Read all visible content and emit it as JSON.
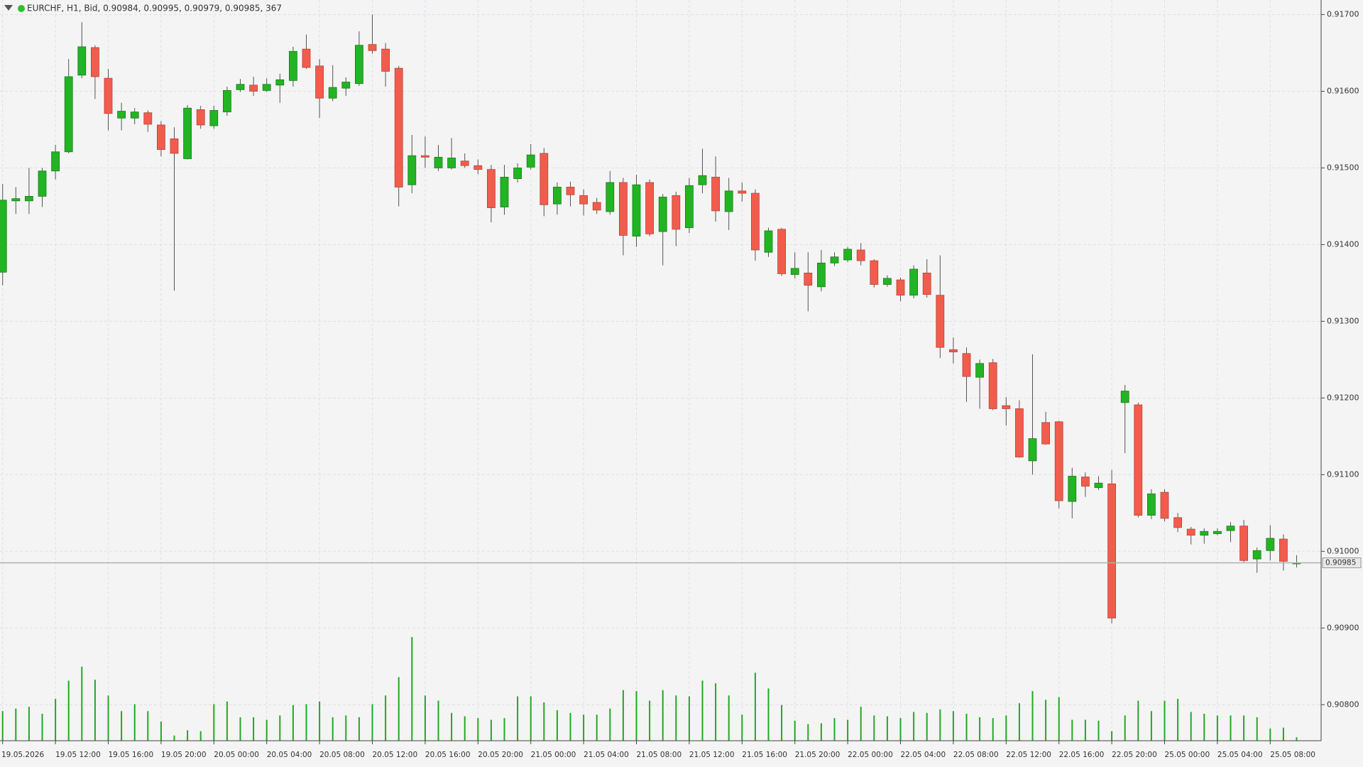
{
  "chart_data": {
    "type": "candlestick",
    "title": "EURCHF, H1, Bid, 0.90984, 0.90995, 0.90979, 0.90985, 367",
    "categories": [
      "19.05.2026",
      null,
      null,
      null,
      "19.05 12:00",
      null,
      null,
      null,
      "19.05 16:00",
      null,
      null,
      null,
      "19.05 20:00",
      null,
      null,
      null,
      "20.05 00:00",
      null,
      null,
      null,
      "20.05 04:00",
      null,
      null,
      null,
      "20.05 08:00",
      null,
      null,
      null,
      "20.05 12:00",
      null,
      null,
      null,
      "20.05 16:00",
      null,
      null,
      null,
      "20.05 20:00",
      null,
      null,
      null,
      "21.05 00:00",
      null,
      null,
      null,
      "21.05 04:00",
      null,
      null,
      null,
      "21.05 08:00",
      null,
      null,
      null,
      "21.05 12:00",
      null,
      null,
      null,
      "21.05 16:00",
      null,
      null,
      null,
      "21.05 20:00",
      null,
      null,
      null,
      "22.05 00:00",
      null,
      null,
      null,
      "22.05 04:00",
      null,
      null,
      null,
      "22.05 08:00",
      null,
      null,
      null,
      "22.05 12:00",
      null,
      null,
      null,
      "22.05 16:00",
      null,
      null,
      null,
      "22.05 20:00",
      null,
      null,
      null,
      "25.05 00:00",
      null,
      null,
      null,
      "25.05 04:00",
      null,
      null,
      null,
      "25.05 08:00",
      null,
      null
    ],
    "open": [
      0.91364,
      0.91457,
      0.91457,
      0.91463,
      0.91496,
      0.91521,
      0.91621,
      0.91657,
      0.91617,
      0.91565,
      0.91565,
      0.91572,
      0.91556,
      0.91538,
      0.91512,
      0.91576,
      0.91555,
      0.91573,
      0.91602,
      0.91608,
      0.91601,
      0.91608,
      0.91614,
      0.91655,
      0.91633,
      0.91591,
      0.91604,
      0.9161,
      0.91661,
      0.91655,
      0.9163,
      0.91478,
      0.91516,
      0.915,
      0.915,
      0.91509,
      0.91503,
      0.91498,
      0.91449,
      0.91486,
      0.91501,
      0.91519,
      0.91453,
      0.91475,
      0.91464,
      0.91455,
      0.91443,
      0.91481,
      0.91411,
      0.91481,
      0.91417,
      0.91464,
      0.91422,
      0.91478,
      0.91488,
      0.91443,
      0.9147,
      0.91467,
      0.9139,
      0.9142,
      0.91361,
      0.91363,
      0.91345,
      0.91376,
      0.9138,
      0.91393,
      0.91379,
      0.91348,
      0.91354,
      0.91334,
      0.91363,
      0.91334,
      0.91263,
      0.91258,
      0.91227,
      0.91246,
      0.9119,
      0.91186,
      0.91118,
      0.91168,
      0.91169,
      0.91065,
      0.91097,
      0.91083,
      0.91088,
      0.91194,
      0.91191,
      0.91047,
      0.91077,
      0.91044,
      0.91029,
      0.91021,
      0.91023,
      0.91027,
      0.91033,
      0.9099,
      0.91001,
      0.91016,
      0.90984
    ],
    "high": [
      0.91479,
      0.91475,
      0.915,
      0.915,
      0.9153,
      0.91642,
      0.9169,
      0.9166,
      0.91629,
      0.91585,
      0.91578,
      0.91575,
      0.91561,
      0.91553,
      0.91582,
      0.91581,
      0.91581,
      0.91606,
      0.91616,
      0.91619,
      0.91617,
      0.91623,
      0.91658,
      0.91674,
      0.91642,
      0.91634,
      0.91618,
      0.91678,
      0.917,
      0.91663,
      0.91633,
      0.91543,
      0.91541,
      0.9153,
      0.91539,
      0.91519,
      0.91511,
      0.91504,
      0.91504,
      0.91506,
      0.91531,
      0.91526,
      0.91481,
      0.91482,
      0.91472,
      0.91461,
      0.91496,
      0.91487,
      0.91491,
      0.91485,
      0.91466,
      0.91469,
      0.91487,
      0.91525,
      0.91515,
      0.91487,
      0.91481,
      0.91472,
      0.91422,
      0.91422,
      0.9139,
      0.9139,
      0.91393,
      0.9139,
      0.91397,
      0.91402,
      0.91381,
      0.9136,
      0.91357,
      0.91373,
      0.91381,
      0.91386,
      0.91279,
      0.91266,
      0.9125,
      0.91251,
      0.91201,
      0.91197,
      0.91257,
      0.91182,
      0.9117,
      0.91109,
      0.91103,
      0.91098,
      0.91106,
      0.91217,
      0.91194,
      0.91081,
      0.91081,
      0.9105,
      0.91032,
      0.9103,
      0.9103,
      0.91038,
      0.91041,
      0.91005,
      0.91034,
      0.91022,
      0.90995
    ],
    "low": [
      0.91347,
      0.9144,
      0.9144,
      0.91449,
      0.91485,
      0.91519,
      0.91617,
      0.9159,
      0.91549,
      0.91549,
      0.91557,
      0.91547,
      0.91515,
      0.9134,
      0.91511,
      0.91551,
      0.91551,
      0.91568,
      0.91599,
      0.91594,
      0.91599,
      0.91585,
      0.91606,
      0.91629,
      0.91565,
      0.91587,
      0.91594,
      0.91607,
      0.91649,
      0.91606,
      0.9145,
      0.91467,
      0.915,
      0.91496,
      0.91498,
      0.915,
      0.91492,
      0.91429,
      0.91439,
      0.91481,
      0.91498,
      0.91437,
      0.91439,
      0.9145,
      0.91438,
      0.9144,
      0.91439,
      0.91386,
      0.91397,
      0.91411,
      0.91373,
      0.91398,
      0.91415,
      0.91467,
      0.9143,
      0.91419,
      0.91456,
      0.91379,
      0.91384,
      0.91359,
      0.91356,
      0.91313,
      0.91339,
      0.91372,
      0.91377,
      0.91373,
      0.91344,
      0.91345,
      0.91326,
      0.9133,
      0.91331,
      0.91252,
      0.91245,
      0.91195,
      0.91186,
      0.91184,
      0.91164,
      0.91122,
      0.911,
      0.91139,
      0.91056,
      0.91043,
      0.91071,
      0.9108,
      0.90906,
      0.91128,
      0.91044,
      0.91042,
      0.91039,
      0.91025,
      0.91009,
      0.9101,
      0.91021,
      0.91012,
      0.90986,
      0.90972,
      0.90988,
      0.90975,
      0.90979
    ],
    "close": [
      0.91458,
      0.9146,
      0.91463,
      0.91496,
      0.91521,
      0.91619,
      0.91658,
      0.91619,
      0.91571,
      0.91574,
      0.91573,
      0.91557,
      0.91524,
      0.91519,
      0.91578,
      0.91556,
      0.91575,
      0.91601,
      0.91609,
      0.916,
      0.91609,
      0.91615,
      0.91652,
      0.91631,
      0.91591,
      0.91605,
      0.91612,
      0.9166,
      0.91653,
      0.91626,
      0.91475,
      0.91516,
      0.91514,
      0.91514,
      0.91513,
      0.91503,
      0.91498,
      0.91448,
      0.91488,
      0.915,
      0.91517,
      0.91452,
      0.91475,
      0.91465,
      0.91453,
      0.91445,
      0.91481,
      0.91412,
      0.91478,
      0.91414,
      0.91462,
      0.9142,
      0.91477,
      0.9149,
      0.91444,
      0.9147,
      0.91467,
      0.91393,
      0.91418,
      0.91362,
      0.91369,
      0.91347,
      0.91376,
      0.91384,
      0.91394,
      0.91379,
      0.91348,
      0.91356,
      0.91334,
      0.91368,
      0.91335,
      0.91266,
      0.9126,
      0.91228,
      0.91245,
      0.91186,
      0.91186,
      0.91123,
      0.91147,
      0.9114,
      0.91066,
      0.91098,
      0.91085,
      0.91089,
      0.90913,
      0.91209,
      0.91047,
      0.91075,
      0.91043,
      0.91031,
      0.91021,
      0.91026,
      0.91026,
      0.91033,
      0.90988,
      0.91001,
      0.91017,
      0.90987,
      0.90985
    ],
    "volume": [
      3130,
      3400,
      3590,
      2850,
      4420,
      6350,
      7820,
      6440,
      4780,
      3130,
      3860,
      3130,
      2020,
      550,
      1100,
      1010,
      3860,
      4140,
      2480,
      2480,
      2210,
      2670,
      3770,
      3860,
      4140,
      2480,
      2670,
      2480,
      3860,
      4780,
      6720,
      10950,
      4780,
      4230,
      2940,
      2580,
      2390,
      2210,
      2390,
      4690,
      4690,
      4050,
      3220,
      2940,
      2760,
      2760,
      3400,
      5340,
      5240,
      4230,
      5340,
      4780,
      4690,
      6350,
      6070,
      4780,
      2760,
      7180,
      5520,
      3770,
      2120,
      1750,
      1840,
      2390,
      2210,
      3590,
      2670,
      2580,
      2390,
      3040,
      2940,
      3310,
      3130,
      2850,
      2480,
      2390,
      2670,
      3960,
      5240,
      4320,
      4600,
      2210,
      2210,
      2120,
      1010,
      2670,
      4230,
      3130,
      4230,
      4420,
      3040,
      2850,
      2670,
      2670,
      2670,
      2480,
      1290,
      1380,
      367
    ],
    "up_color": "#22b422",
    "down_color": "#f25c4c",
    "volume_color": "#22a822",
    "ylim": [
      0.90753,
      0.91719
    ],
    "yticks": [
      {
        "value": 0.908,
        "label": "0.90800"
      },
      {
        "value": 0.909,
        "label": "0.90900"
      },
      {
        "value": 0.91,
        "label": "0.91000"
      },
      {
        "value": 0.911,
        "label": "0.91100"
      },
      {
        "value": 0.912,
        "label": "0.91200"
      },
      {
        "value": 0.913,
        "label": "0.91300"
      },
      {
        "value": 0.914,
        "label": "0.91400"
      },
      {
        "value": 0.915,
        "label": "0.91500"
      },
      {
        "value": 0.916,
        "label": "0.91600"
      },
      {
        "value": 0.917,
        "label": "0.91700"
      }
    ],
    "last_price": {
      "value": 0.90985,
      "label": "0.90985"
    },
    "grid": true
  }
}
